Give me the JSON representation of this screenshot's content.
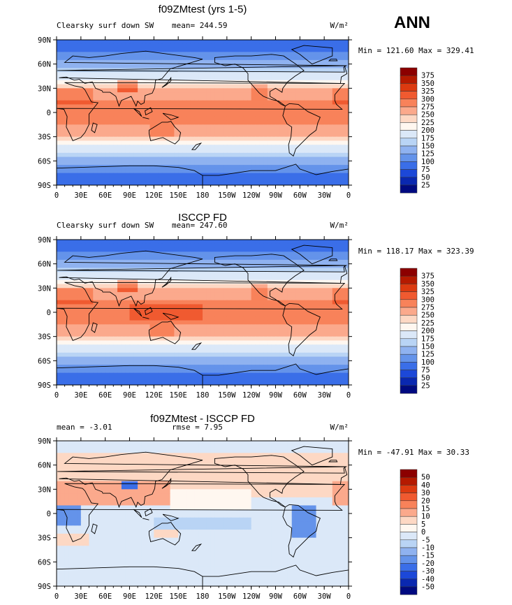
{
  "season": "ANN",
  "chart_data": [
    {
      "type": "heatmap",
      "title": "f09ZMtest (yrs 1-5)",
      "left_label": "Clearsky surf down SW",
      "center_label": "mean= 244.59",
      "units_label": "W/m²",
      "minmax_label": "Min = 121.60 Max = 329.41",
      "min": 121.6,
      "max": 329.41,
      "mean": 244.59,
      "x_tick_labels": [
        "0",
        "30E",
        "60E",
        "90E",
        "120E",
        "150E",
        "180",
        "150W",
        "120W",
        "90W",
        "60W",
        "30W",
        "0"
      ],
      "y_tick_labels": [
        "90N",
        "60N",
        "30N",
        "0",
        "30S",
        "60S",
        "90S"
      ],
      "colorbar_levels": [
        "375",
        "350",
        "325",
        "300",
        "275",
        "250",
        "225",
        "200",
        "175",
        "150",
        "125",
        "100",
        "75",
        "50",
        "25"
      ],
      "colors": [
        "#8c0000",
        "#b51a00",
        "#dc3a10",
        "#f05a30",
        "#f8825a",
        "#fba98c",
        "#fdd8c4",
        "#fff7f0",
        "#dbe8f8",
        "#b9d4f5",
        "#8fb2f0",
        "#6493ea",
        "#3a6ee8",
        "#1c48d8",
        "#0a28b0",
        "#000a80"
      ]
    },
    {
      "type": "heatmap",
      "title": "ISCCP FD",
      "left_label": "Clearsky surf down SW",
      "center_label": "mean= 247.60",
      "units_label": "W/m²",
      "minmax_label": "Min = 118.17 Max = 323.39",
      "min": 118.17,
      "max": 323.39,
      "mean": 247.6,
      "x_tick_labels": [
        "0",
        "30E",
        "60E",
        "90E",
        "120E",
        "150E",
        "180",
        "150W",
        "120W",
        "90W",
        "60W",
        "30W",
        "0"
      ],
      "y_tick_labels": [
        "90N",
        "60N",
        "30N",
        "0",
        "30S",
        "60S",
        "90S"
      ],
      "colorbar_levels": [
        "375",
        "350",
        "325",
        "300",
        "275",
        "250",
        "225",
        "200",
        "175",
        "150",
        "125",
        "100",
        "75",
        "50",
        "25"
      ],
      "colors": [
        "#8c0000",
        "#b51a00",
        "#dc3a10",
        "#f05a30",
        "#f8825a",
        "#fba98c",
        "#fdd8c4",
        "#fff7f0",
        "#dbe8f8",
        "#b9d4f5",
        "#8fb2f0",
        "#6493ea",
        "#3a6ee8",
        "#1c48d8",
        "#0a28b0",
        "#000a80"
      ]
    },
    {
      "type": "heatmap",
      "title": "f09ZMtest - ISCCP FD",
      "left_label": "mean =   -3.01",
      "center_label": "rmse =    7.95",
      "units_label": "W/m²",
      "minmax_label": "Min = -47.91 Max =  30.33",
      "min": -47.91,
      "max": 30.33,
      "mean": -3.01,
      "rmse": 7.95,
      "x_tick_labels": [
        "0",
        "30E",
        "60E",
        "90E",
        "120E",
        "150E",
        "180",
        "150W",
        "120W",
        "90W",
        "60W",
        "30W",
        "0"
      ],
      "y_tick_labels": [
        "90N",
        "60N",
        "30N",
        "0",
        "30S",
        "60S",
        "90S"
      ],
      "colorbar_levels": [
        "50",
        "40",
        "30",
        "20",
        "15",
        "10",
        "5",
        "0",
        "-5",
        "-10",
        "-15",
        "-20",
        "-30",
        "-40",
        "-50"
      ],
      "colors": [
        "#8c0000",
        "#b51a00",
        "#dc3a10",
        "#f05a30",
        "#f8825a",
        "#fba98c",
        "#fdd8c4",
        "#fff7f0",
        "#dbe8f8",
        "#b9d4f5",
        "#8fb2f0",
        "#6493ea",
        "#3a6ee8",
        "#1c48d8",
        "#0a28b0",
        "#000a80"
      ]
    }
  ]
}
